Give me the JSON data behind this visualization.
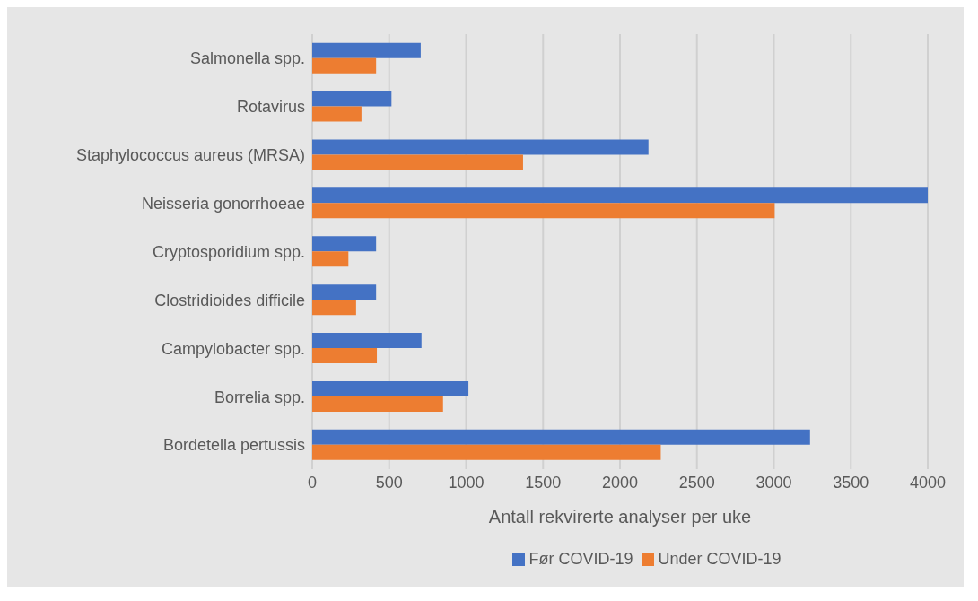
{
  "chart_data": {
    "type": "bar",
    "orientation": "horizontal",
    "xlabel": "Antall rekvirerte analyser per uke",
    "categories": [
      "Salmonella spp.",
      "Rotavirus",
      "Staphylococcus aureus (MRSA)",
      "Neisseria gonorrhoeae",
      "Cryptosporidium spp.",
      "Clostridioides difficile",
      "Campylobacter spp.",
      "Borrelia spp.",
      "Bordetella pertussis"
    ],
    "series": [
      {
        "name": "Før COVID-19",
        "color": "#4472c4",
        "values": [
          705,
          515,
          2185,
          4000,
          415,
          415,
          710,
          1015,
          3235
        ]
      },
      {
        "name": "Under COVID-19",
        "color": "#ed7d31",
        "values": [
          415,
          320,
          1370,
          3005,
          235,
          285,
          420,
          850,
          2265
        ]
      }
    ],
    "xlim": [
      0,
      4000
    ],
    "xticks": [
      0,
      500,
      1000,
      1500,
      2000,
      2500,
      3000,
      3500,
      4000
    ],
    "grid": "x",
    "legend": "bottom"
  }
}
